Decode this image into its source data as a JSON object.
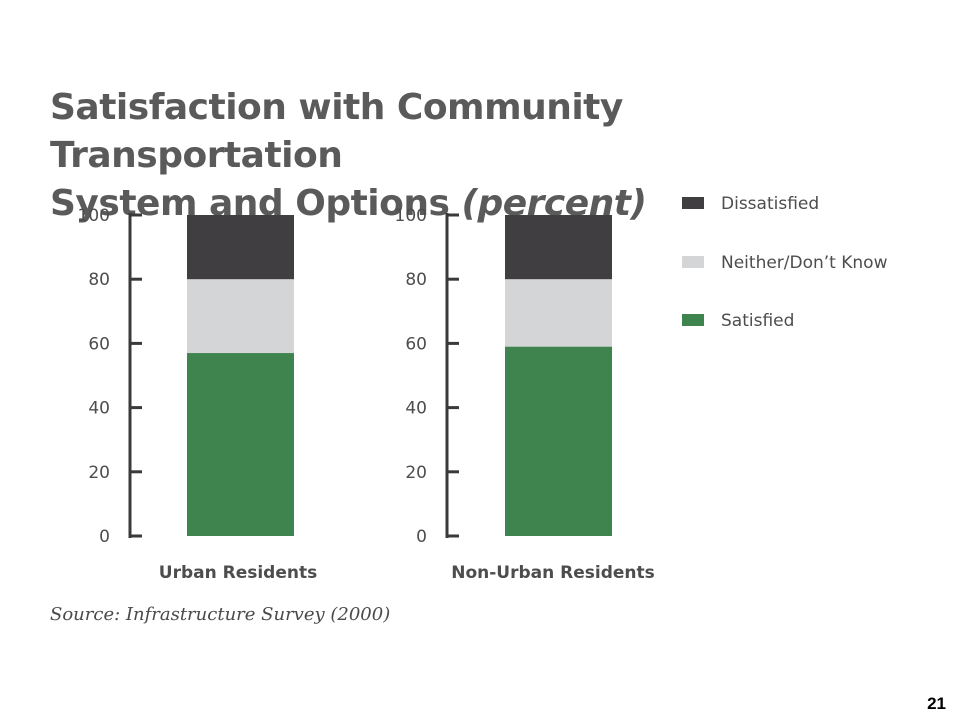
{
  "title": {
    "line1": "Satisfaction with Community Transportation",
    "line2": "System and Options",
    "line2_italic": "(percent)"
  },
  "chart_data": {
    "type": "bar",
    "stacked": true,
    "categories": [
      "Urban Residents",
      "Non-Urban Residents"
    ],
    "series": [
      {
        "name": "Satisfied",
        "color": "#3f844e",
        "values": [
          57,
          59
        ]
      },
      {
        "name": "Neither/Don’t Know",
        "color": "#d4d5d6",
        "values": [
          23,
          21
        ]
      },
      {
        "name": "Dissatisfied",
        "color": "#403e40",
        "values": [
          20,
          20
        ]
      }
    ],
    "legend_order": [
      "Dissatisfied",
      "Neither/Don’t Know",
      "Satisfied"
    ],
    "ylim": [
      0,
      100
    ],
    "yticks": [
      0,
      20,
      40,
      60,
      80,
      100
    ],
    "legend_position": "right",
    "grid": false,
    "separate_panels": true
  },
  "source": "Source: Infrastructure Survey (2000)",
  "page_number": "21"
}
